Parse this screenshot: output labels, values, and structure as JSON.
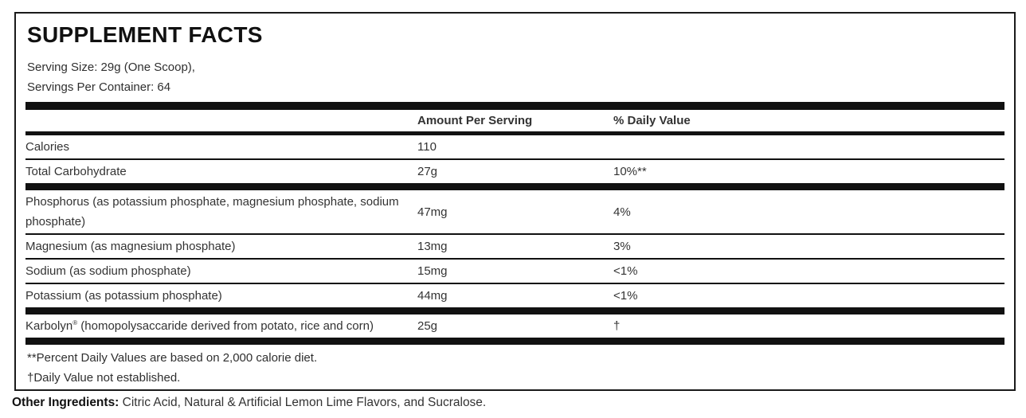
{
  "supplement_facts": {
    "title": "SUPPLEMENT FACTS",
    "serving_size": "Serving Size: 29g (One Scoop),",
    "servings_per_container": "Servings Per Container: 64",
    "columns": {
      "amount_header": "Amount Per Serving",
      "dv_header": "% Daily Value"
    },
    "rows": [
      {
        "name": "Calories",
        "amount": "110",
        "dv": "",
        "sep": "thin"
      },
      {
        "name": "Total Carbohydrate",
        "amount": "27g",
        "dv": "10%**",
        "sep": "thick"
      },
      {
        "name": "Phosphorus (as potassium phosphate, magnesium phosphate, sodium phosphate)",
        "amount": "47mg",
        "dv": "4%",
        "sep": "thin"
      },
      {
        "name": "Magnesium (as magnesium phosphate)",
        "amount": "13mg",
        "dv": "3%",
        "sep": "thin"
      },
      {
        "name": "Sodium (as sodium phosphate)",
        "amount": "15mg",
        "dv": "<1%",
        "sep": "thin"
      },
      {
        "name": "Potassium (as potassium phosphate)",
        "amount": "44mg",
        "dv": "<1%",
        "sep": "thick"
      },
      {
        "name_parts": [
          {
            "t": "Karbolyn"
          },
          {
            "t": "®",
            "sup": true
          },
          {
            "t": " (homopolysaccaride derived from potato, rice and corn)"
          }
        ],
        "amount": "25g",
        "dv": "†",
        "sep": "thick"
      }
    ],
    "footnotes": [
      "**Percent Daily Values are based on 2,000 calorie diet.",
      "†Daily Value not established."
    ],
    "other_ingredients": {
      "label": "Other Ingredients:",
      "text": " Citric Acid, Natural & Artificial Lemon Lime Flavors, and Sucralose."
    },
    "colors": {
      "bar": "#111111",
      "border": "#1a1a1a",
      "body_text": "#333333",
      "heading_text": "#111111",
      "background": "#ffffff"
    }
  }
}
